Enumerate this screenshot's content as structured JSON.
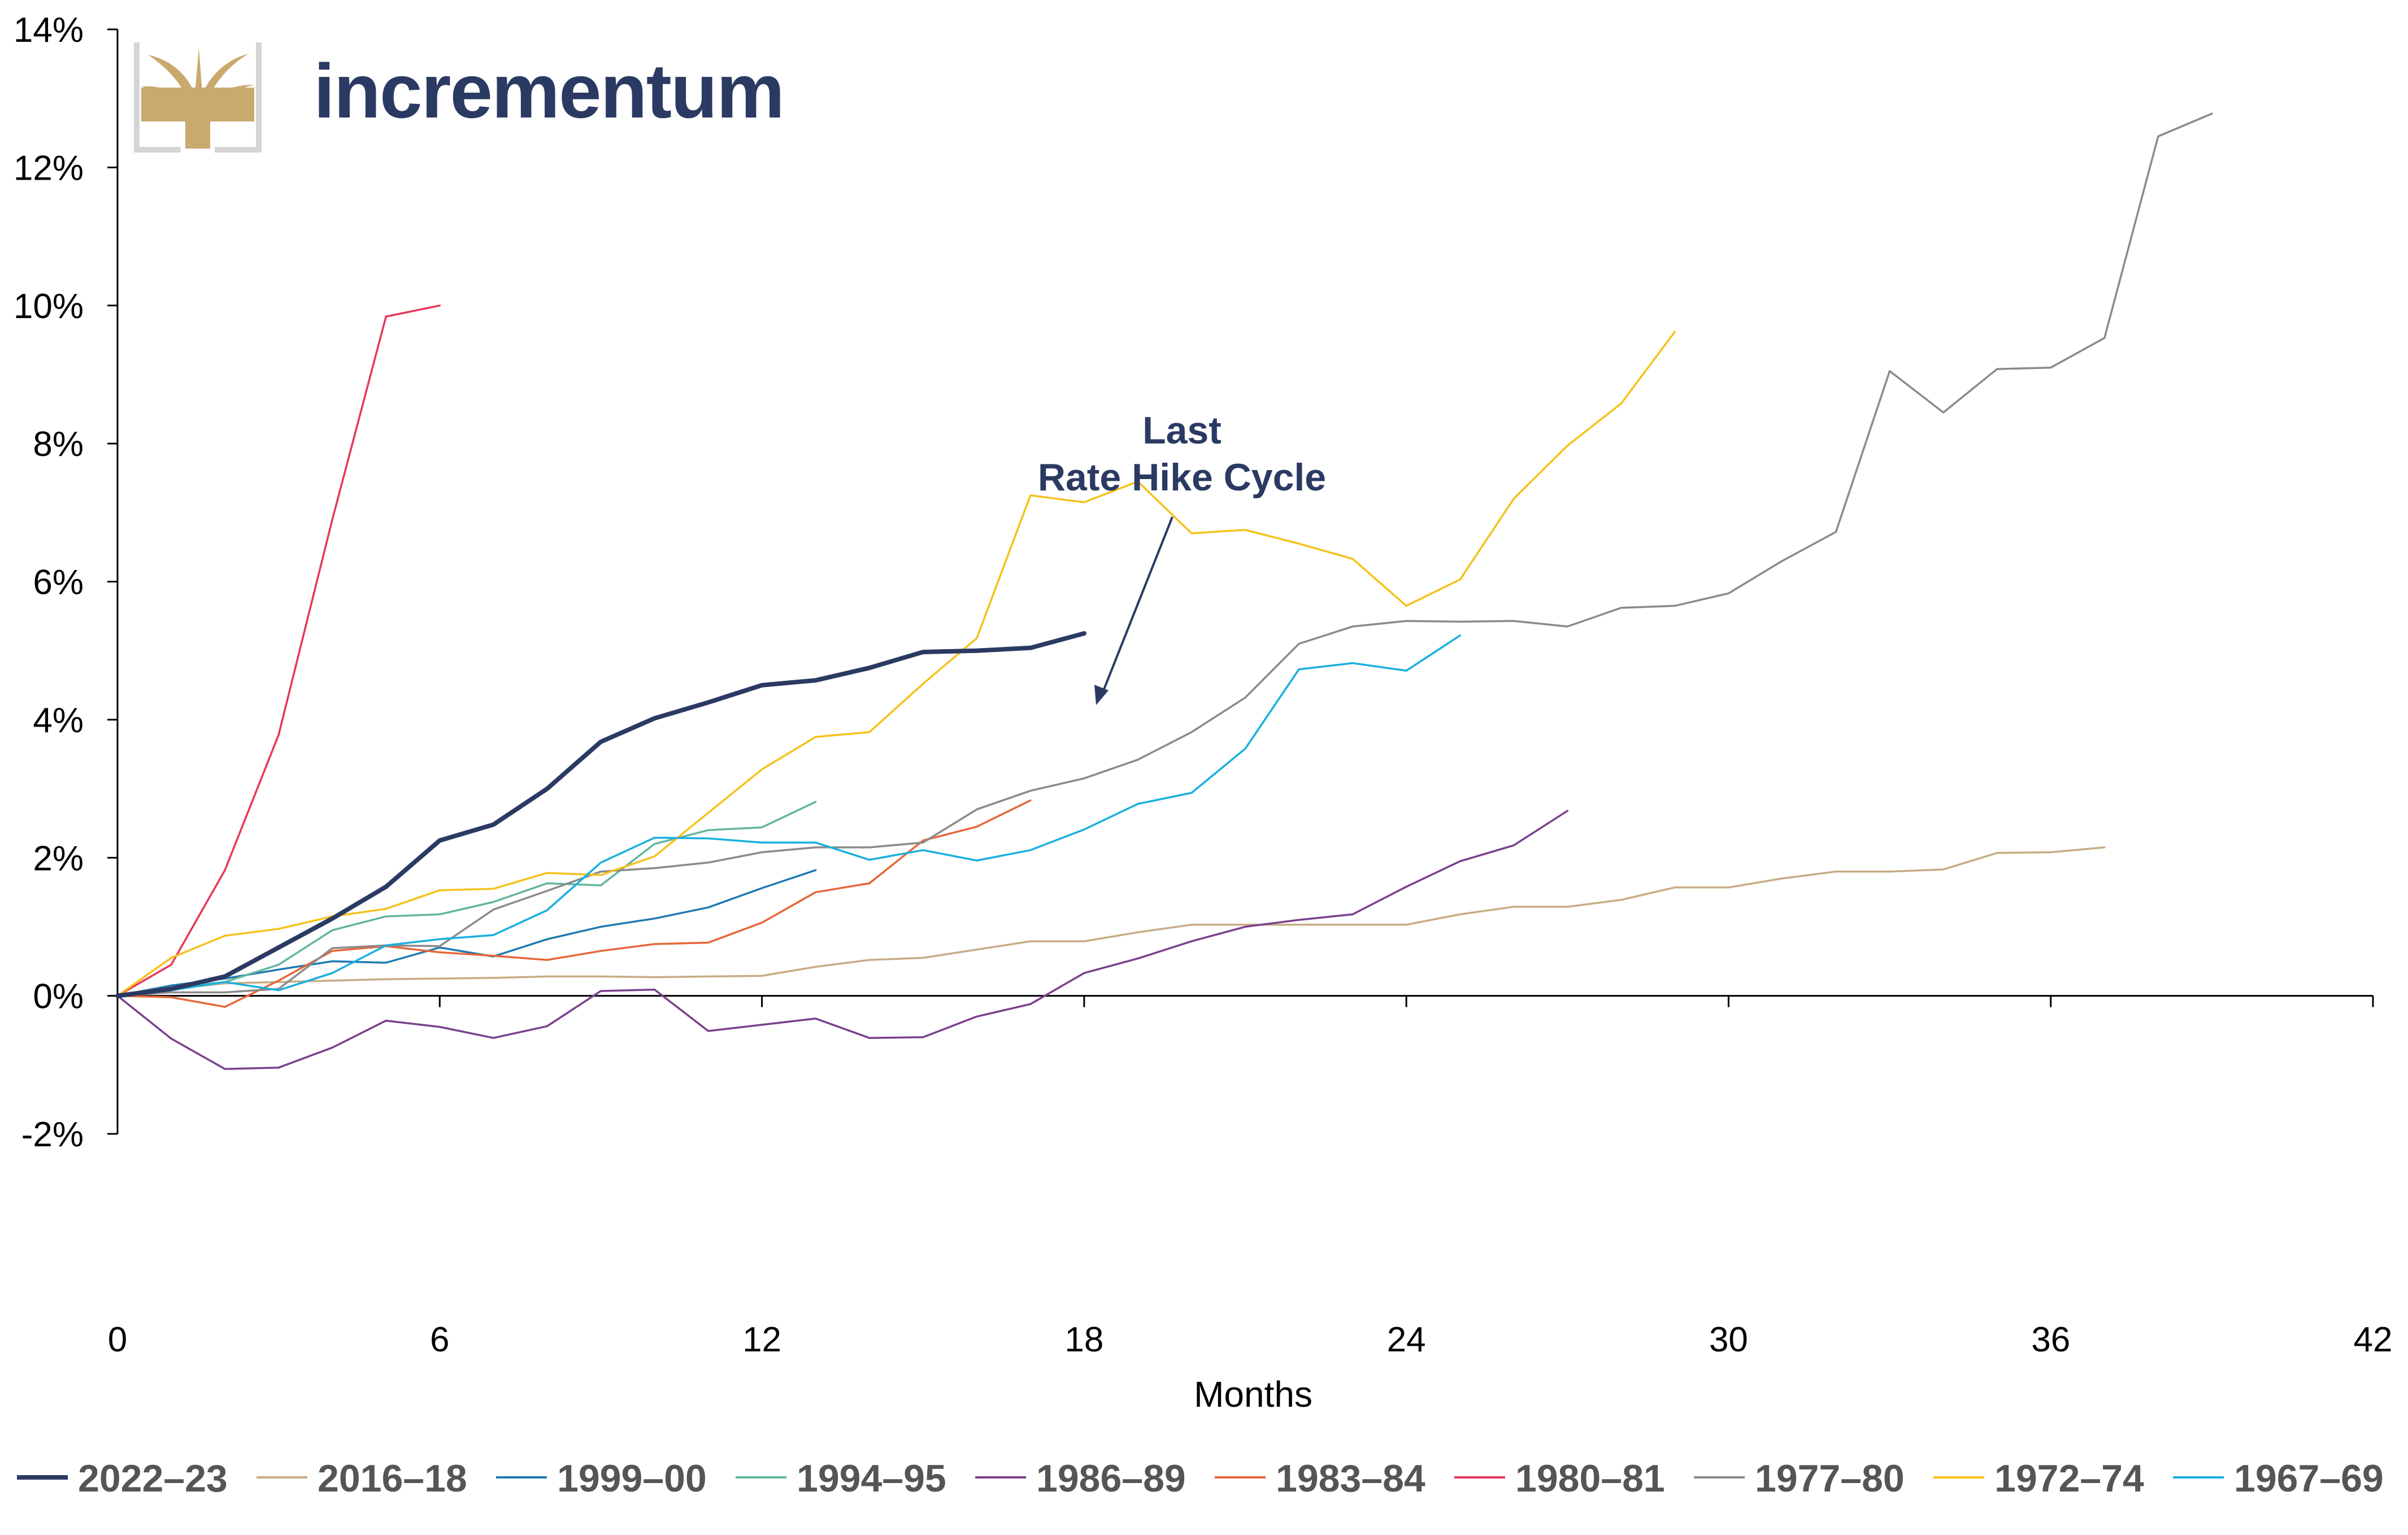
{
  "brand": {
    "name": "incrementum",
    "logo_icon": "tree-icon",
    "color": "#2b3a63",
    "icon_color": "#c9a96e"
  },
  "chart_data": {
    "type": "line",
    "title": "",
    "xlabel": "Months",
    "ylabel": "",
    "xlim": [
      0,
      42
    ],
    "ylim": [
      -2,
      14
    ],
    "x_ticks": [
      0,
      6,
      12,
      18,
      24,
      30,
      36,
      42
    ],
    "y_ticks": [
      -2,
      0,
      2,
      4,
      6,
      8,
      10,
      12,
      14
    ],
    "y_tick_format": "percent",
    "grid": false,
    "legend_position": "bottom",
    "annotation": {
      "line1": "Last",
      "line2": "Rate Hike Cycle",
      "points_to": {
        "series": "2022–23",
        "x": 18
      }
    },
    "series": [
      {
        "name": "2022–23",
        "color": "#2b3a63",
        "bold": true,
        "x": [
          0,
          1,
          2,
          3,
          4,
          5,
          6,
          7,
          8,
          9,
          10,
          11,
          12,
          13,
          14,
          15,
          16,
          17,
          18
        ],
        "y": [
          0,
          0.1,
          0.28,
          0.7,
          1.12,
          1.58,
          2.25,
          2.48,
          3.0,
          3.68,
          4.02,
          4.25,
          4.5,
          4.57,
          4.75,
          4.98,
          5.0,
          5.04,
          5.25
        ]
      },
      {
        "name": "2016–18",
        "color": "#c7ac84",
        "x": [
          0,
          1,
          2,
          3,
          4,
          5,
          6,
          7,
          8,
          9,
          10,
          11,
          12,
          13,
          14,
          15,
          16,
          17,
          18,
          19,
          20,
          21,
          22,
          23,
          24,
          25,
          26,
          27,
          28,
          29,
          30,
          31,
          32,
          33,
          34,
          35,
          36,
          37
        ],
        "y": [
          0,
          0.1,
          0.18,
          0.2,
          0.22,
          0.24,
          0.25,
          0.26,
          0.28,
          0.28,
          0.27,
          0.28,
          0.29,
          0.42,
          0.52,
          0.55,
          0.67,
          0.79,
          0.79,
          0.92,
          1.03,
          1.03,
          1.03,
          1.03,
          1.03,
          1.18,
          1.29,
          1.29,
          1.39,
          1.57,
          1.57,
          1.7,
          1.8,
          1.8,
          1.83,
          2.07,
          2.08,
          2.15
        ]
      },
      {
        "name": "1999–00",
        "color": "#1f7ab0",
        "x": [
          0,
          1,
          2,
          3,
          4,
          5,
          6,
          7,
          8,
          9,
          10,
          11,
          12,
          13
        ],
        "y": [
          0,
          0.15,
          0.25,
          0.38,
          0.5,
          0.48,
          0.7,
          0.57,
          0.82,
          1.0,
          1.12,
          1.28,
          1.56,
          1.82
        ]
      },
      {
        "name": "1994–95",
        "color": "#62b5a0",
        "x": [
          0,
          1,
          2,
          3,
          4,
          5,
          6,
          7,
          8,
          9,
          10,
          11,
          12,
          13
        ],
        "y": [
          0,
          0.12,
          0.2,
          0.45,
          0.95,
          1.15,
          1.18,
          1.36,
          1.63,
          1.6,
          2.2,
          2.4,
          2.44,
          2.81
        ]
      },
      {
        "name": "1986–89",
        "color": "#7b3f8e",
        "x": [
          0,
          1,
          2,
          3,
          4,
          5,
          6,
          7,
          8,
          9,
          10,
          11,
          12,
          13,
          14,
          15,
          16,
          17,
          18,
          19,
          20,
          21,
          22,
          23,
          24,
          25,
          26,
          27
        ],
        "y": [
          0,
          -0.62,
          -1.06,
          -1.04,
          -0.75,
          -0.36,
          -0.45,
          -0.61,
          -0.44,
          0.07,
          0.09,
          -0.51,
          -0.42,
          -0.33,
          -0.61,
          -0.6,
          -0.3,
          -0.12,
          0.33,
          0.54,
          0.79,
          1.0,
          1.1,
          1.18,
          1.58,
          1.95,
          2.18,
          2.68
        ]
      },
      {
        "name": "1983–84",
        "color": "#e6673a",
        "x": [
          0,
          1,
          2,
          3,
          4,
          5,
          6,
          7,
          8,
          9,
          10,
          11,
          12,
          13,
          14,
          15,
          16,
          17
        ],
        "y": [
          0,
          -0.02,
          -0.16,
          0.22,
          0.65,
          0.72,
          0.63,
          0.58,
          0.52,
          0.65,
          0.75,
          0.77,
          1.06,
          1.5,
          1.63,
          2.25,
          2.45,
          2.83
        ]
      },
      {
        "name": "1980–81",
        "color": "#e8365b",
        "x": [
          0,
          1,
          2,
          3,
          4,
          5,
          6
        ],
        "y": [
          0,
          0.45,
          1.82,
          3.78,
          6.9,
          9.84,
          10.0
        ]
      },
      {
        "name": "1977–80",
        "color": "#8a8a8a",
        "x": [
          0,
          1,
          2,
          3,
          4,
          5,
          6,
          7,
          8,
          9,
          10,
          11,
          12,
          13,
          14,
          15,
          16,
          17,
          18,
          19,
          20,
          21,
          22,
          23,
          24,
          25,
          26,
          27,
          28,
          29,
          30,
          31,
          32,
          33,
          34,
          35,
          36,
          37,
          38,
          39
        ],
        "y": [
          0,
          0.05,
          0.05,
          0.1,
          0.69,
          0.73,
          0.72,
          1.25,
          1.52,
          1.8,
          1.85,
          1.93,
          2.08,
          2.15,
          2.15,
          2.22,
          2.7,
          2.97,
          3.15,
          3.42,
          3.82,
          4.32,
          5.1,
          5.35,
          5.43,
          5.42,
          5.43,
          5.35,
          5.62,
          5.65,
          5.83,
          6.3,
          6.72,
          9.05,
          8.45,
          9.08,
          9.1,
          9.53,
          12.45,
          12.78
        ]
      },
      {
        "name": "1972–74",
        "color": "#f5c21b",
        "x": [
          0,
          1,
          2,
          3,
          4,
          5,
          6,
          7,
          8,
          9,
          10,
          11,
          12,
          13,
          14,
          15,
          16,
          17,
          18,
          19,
          20,
          21,
          22,
          23,
          24,
          25,
          26,
          27,
          28,
          29
        ],
        "y": [
          0,
          0.55,
          0.87,
          0.97,
          1.15,
          1.26,
          1.53,
          1.55,
          1.78,
          1.75,
          2.02,
          2.65,
          3.28,
          3.75,
          3.82,
          4.52,
          5.18,
          7.25,
          7.15,
          7.45,
          6.7,
          6.75,
          6.55,
          6.33,
          5.65,
          6.03,
          7.2,
          7.97,
          8.58,
          9.62
        ]
      },
      {
        "name": "1967–69",
        "color": "#19b0de",
        "x": [
          0,
          1,
          2,
          3,
          4,
          5,
          6,
          7,
          8,
          9,
          10,
          11,
          12,
          13,
          14,
          15,
          16,
          17,
          18,
          19,
          20,
          21,
          22,
          23,
          24,
          25
        ],
        "y": [
          0,
          0.08,
          0.2,
          0.08,
          0.33,
          0.73,
          0.82,
          0.88,
          1.24,
          1.93,
          2.29,
          2.28,
          2.22,
          2.22,
          1.97,
          2.11,
          1.96,
          2.11,
          2.41,
          2.78,
          2.94,
          3.58,
          4.73,
          4.82,
          4.71,
          5.22
        ]
      }
    ]
  }
}
